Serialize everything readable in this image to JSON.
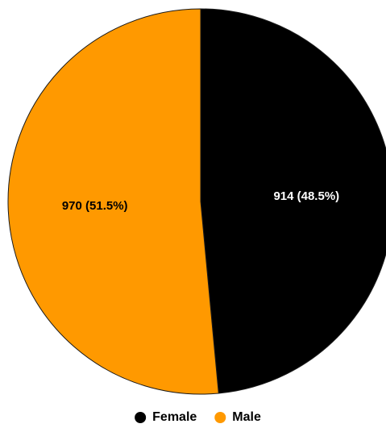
{
  "chart_data": {
    "type": "pie",
    "title": "",
    "slices": [
      {
        "label": "Female",
        "value": 914,
        "percent": 48.5,
        "display": "914 (48.5%)",
        "color": "#000000",
        "label_color": "#ffffff"
      },
      {
        "label": "Male",
        "value": 970,
        "percent": 51.5,
        "display": "970 (51.5%)",
        "color": "#FF9900",
        "label_color": "#000000"
      }
    ],
    "legend": {
      "position": "bottom",
      "items": [
        {
          "label": "Female",
          "color": "#000000"
        },
        {
          "label": "Male",
          "color": "#FF9900"
        }
      ]
    }
  }
}
